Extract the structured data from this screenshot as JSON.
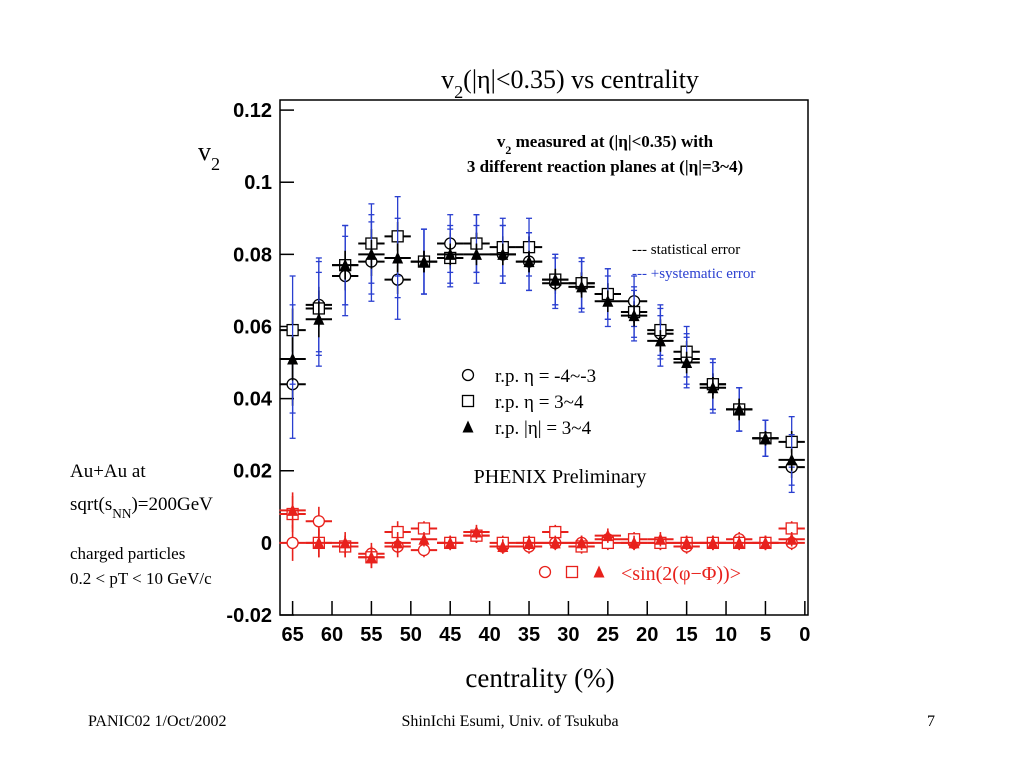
{
  "chart_data": {
    "type": "scatter",
    "title": {
      "pre": "v",
      "sub": "2",
      "post": "(|η|<0.35) vs centrality"
    },
    "y_label": {
      "pre": "v",
      "sub": "2"
    },
    "x_label": "centrality (%)",
    "note": [
      {
        "pre": "v",
        "sub": "2",
        "post": " measured at (|η|<0.35) with"
      },
      {
        "pre": "",
        "sub": "",
        "post": "3 different reaction planes at (|η|=3~4)"
      }
    ],
    "error_legend": [
      {
        "text": "--- statistical error",
        "color": "#000000"
      },
      {
        "text": "--- +systematic error",
        "color": "#2a3fd0"
      }
    ],
    "annotation": "PHENIX Preliminary",
    "sin_label": "<sin(2(φ−Φ))>",
    "x_err": 1.67,
    "x": [
      65,
      61.67,
      58.33,
      55,
      51.67,
      48.33,
      45,
      41.67,
      38.33,
      35,
      31.67,
      28.33,
      25,
      21.67,
      18.33,
      15,
      11.67,
      8.33,
      5,
      1.67
    ],
    "series": [
      {
        "name": "r.p. η = -4~-3",
        "marker": "circle",
        "color": "#000000",
        "sys_color": "#2a3fd0",
        "values": [
          0.044,
          0.066,
          0.074,
          0.078,
          0.073,
          0.078,
          0.083,
          0.083,
          0.08,
          0.078,
          0.072,
          0.072,
          0.069,
          0.067,
          0.058,
          0.051,
          0.044,
          0.037,
          0.029,
          0.021
        ],
        "errors": [
          0.006,
          0.005,
          0.004,
          0.004,
          0.004,
          0.003,
          0.003,
          0.003,
          0.003,
          0.003,
          0.003,
          0.003,
          0.003,
          0.003,
          0.003,
          0.003,
          0.003,
          0.003,
          0.002,
          0.003
        ],
        "sys_errors": [
          0.009,
          0.008,
          0.007,
          0.007,
          0.007,
          0.006,
          0.005,
          0.005,
          0.005,
          0.005,
          0.004,
          0.004,
          0.004,
          0.004,
          0.004,
          0.004,
          0.004,
          0.003,
          0.003,
          0.004
        ]
      },
      {
        "name": "r.p. η = 3~4",
        "marker": "square",
        "color": "#000000",
        "sys_color": "#2a3fd0",
        "values": [
          0.059,
          0.065,
          0.077,
          0.083,
          0.085,
          0.078,
          0.079,
          0.083,
          0.082,
          0.082,
          0.073,
          0.072,
          0.069,
          0.064,
          0.059,
          0.053,
          0.044,
          0.037,
          0.029,
          0.028
        ],
        "errors": [
          0.006,
          0.005,
          0.004,
          0.004,
          0.004,
          0.003,
          0.003,
          0.003,
          0.003,
          0.003,
          0.003,
          0.003,
          0.003,
          0.003,
          0.003,
          0.003,
          0.003,
          0.003,
          0.002,
          0.003
        ],
        "sys_errors": [
          0.009,
          0.008,
          0.007,
          0.007,
          0.007,
          0.006,
          0.005,
          0.005,
          0.005,
          0.005,
          0.004,
          0.004,
          0.004,
          0.004,
          0.004,
          0.004,
          0.004,
          0.003,
          0.003,
          0.004
        ]
      },
      {
        "name": "r.p. |η| = 3~4",
        "marker": "triangle",
        "color": "#000000",
        "sys_color": "#2a3fd0",
        "values": [
          0.051,
          0.062,
          0.077,
          0.08,
          0.079,
          0.078,
          0.08,
          0.08,
          0.08,
          0.078,
          0.073,
          0.071,
          0.067,
          0.063,
          0.056,
          0.05,
          0.043,
          0.037,
          0.029,
          0.023
        ],
        "errors": [
          0.006,
          0.005,
          0.004,
          0.004,
          0.004,
          0.003,
          0.003,
          0.003,
          0.003,
          0.003,
          0.003,
          0.003,
          0.003,
          0.003,
          0.003,
          0.003,
          0.003,
          0.003,
          0.002,
          0.003
        ],
        "sys_errors": [
          0.009,
          0.008,
          0.007,
          0.007,
          0.007,
          0.006,
          0.005,
          0.005,
          0.005,
          0.005,
          0.004,
          0.004,
          0.004,
          0.004,
          0.004,
          0.004,
          0.004,
          0.003,
          0.003,
          0.004
        ]
      },
      {
        "marker": "circle",
        "color": "#e8211c",
        "values": [
          0.0,
          0.006,
          -0.001,
          -0.003,
          -0.001,
          -0.002,
          0.0,
          0.002,
          -0.001,
          -0.001,
          0.0,
          0.0,
          0.001,
          0.0,
          0.0,
          -0.001,
          0.0,
          0.001,
          0.0,
          0.0
        ],
        "errors": [
          0.005,
          0.004,
          0.003,
          0.003,
          0.003,
          0.002,
          0.002,
          0.002,
          0.002,
          0.002,
          0.002,
          0.002,
          0.002,
          0.002,
          0.002,
          0.002,
          0.002,
          0.002,
          0.002,
          0.002
        ]
      },
      {
        "marker": "square",
        "color": "#e8211c",
        "values": [
          0.008,
          0.0,
          -0.001,
          -0.004,
          0.003,
          0.004,
          0.0,
          0.002,
          0.0,
          0.0,
          0.003,
          -0.001,
          0.0,
          0.001,
          0.0,
          0.0,
          0.0,
          0.0,
          0.0,
          0.004
        ],
        "errors": [
          0.005,
          0.004,
          0.003,
          0.003,
          0.003,
          0.002,
          0.002,
          0.002,
          0.002,
          0.002,
          0.002,
          0.002,
          0.002,
          0.002,
          0.002,
          0.002,
          0.002,
          0.002,
          0.002,
          0.002
        ]
      },
      {
        "marker": "triangle",
        "color": "#e8211c",
        "values": [
          0.009,
          0.0,
          0.0,
          -0.004,
          0.0,
          0.001,
          0.0,
          0.003,
          -0.001,
          0.0,
          0.0,
          0.0,
          0.002,
          0.0,
          0.001,
          0.0,
          0.0,
          0.0,
          0.0,
          0.001
        ],
        "errors": [
          0.005,
          0.004,
          0.003,
          0.003,
          0.003,
          0.002,
          0.002,
          0.002,
          0.002,
          0.002,
          0.002,
          0.002,
          0.002,
          0.002,
          0.002,
          0.002,
          0.002,
          0.002,
          0.002,
          0.002
        ]
      }
    ],
    "xlim": [
      66.6,
      -0.4
    ],
    "xticks": [
      65,
      60,
      55,
      50,
      45,
      40,
      35,
      30,
      25,
      20,
      15,
      10,
      5,
      0
    ],
    "ylim": [
      -0.02,
      0.1228
    ],
    "yticks": [
      -0.02,
      0,
      0.02,
      0.04,
      0.06,
      0.08,
      0.1,
      0.12
    ]
  },
  "side_notes": {
    "system": "Au+Au at",
    "energy": {
      "pre": "sqrt(s",
      "sub": "NN",
      "post": ")=200GeV"
    },
    "particles": "charged particles",
    "pt_range": "0.2 < pT < 10 GeV/c"
  },
  "footer": {
    "left": "PANIC02 1/Oct/2002",
    "center": "ShinIchi Esumi, Univ. of Tsukuba",
    "page": "7"
  }
}
